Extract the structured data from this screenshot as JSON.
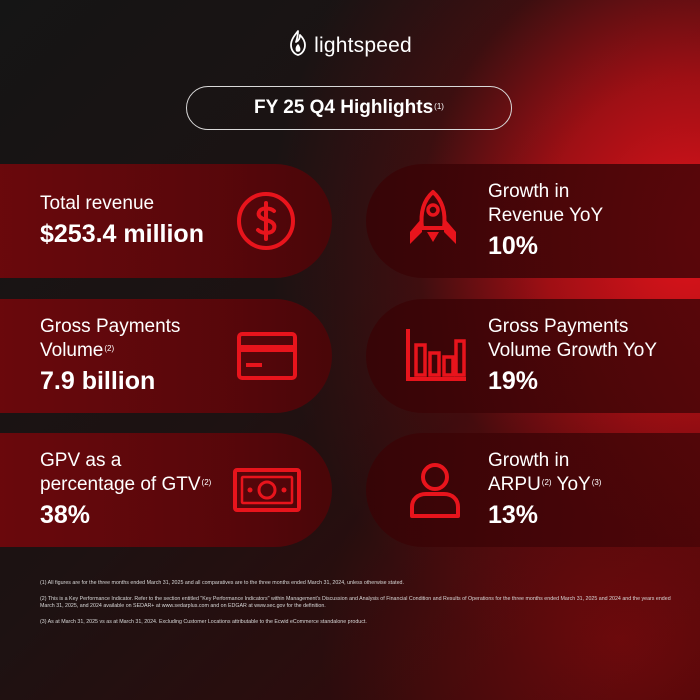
{
  "brand": {
    "name": "lightspeed",
    "icon": "flame-logo-icon"
  },
  "title": {
    "text": "FY 25 Q4 Highlights",
    "note": "(1)"
  },
  "colors": {
    "accent": "#e8141c",
    "background": "#151515",
    "text": "#ffffff"
  },
  "cards": [
    {
      "lines": [
        "Total revenue"
      ],
      "value": "$253.4 million",
      "icon": "dollar-coin-icon"
    },
    {
      "lines": [
        "Growth in",
        "Revenue YoY"
      ],
      "value": "10%",
      "icon": "rocket-icon"
    },
    {
      "lines": [
        "Gross Payments",
        "Volume"
      ],
      "line2_note": "(2)",
      "value": "7.9 billion",
      "icon": "credit-card-icon"
    },
    {
      "lines": [
        "Gross Payments",
        "Volume Growth YoY"
      ],
      "value": "19%",
      "icon": "bar-chart-icon"
    },
    {
      "lines": [
        "GPV as a",
        "percentage of GTV"
      ],
      "line2_note": "(2)",
      "value": "38%",
      "icon": "banknote-icon"
    },
    {
      "lines": [
        "Growth in",
        "ARPU",
        "YoY"
      ],
      "note_a": "(2)",
      "note_b": "(3)",
      "value": "13%",
      "icon": "user-icon"
    }
  ],
  "footnotes": [
    "(1) All figures are for the three months ended March 31, 2025 and all comparatives are to the three months ended March 31, 2024, unless otherwise stated.",
    "(2) This is a Key Performance Indicator. Refer to the section entitled \"Key Performance Indicators\" within Management's Discussion and Analysis of Financial Condition and Results of Operations for the three months ended March 31, 2025 and 2024 and the years ended March 31, 2025, and 2024 available on SEDAR+ at www.sedarplus.com and on EDGAR at www.sec.gov for the definition.",
    "(3) As at March 31, 2025 vs as at March 31, 2024. Excluding Customer Locations attributable to the Ecwid eCommerce standalone product."
  ]
}
